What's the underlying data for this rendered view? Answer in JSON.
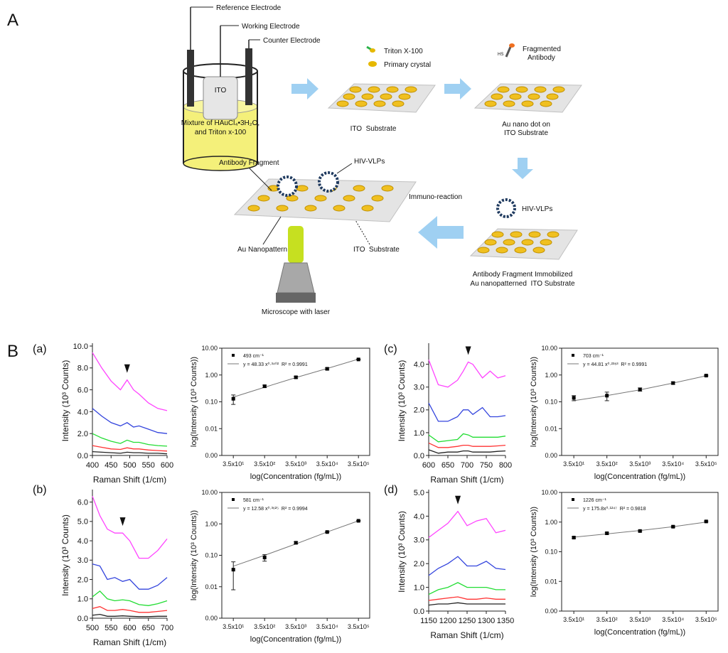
{
  "panel_labels": [
    "A",
    "B",
    "(a)",
    "(b)",
    "(c)",
    "(d)"
  ],
  "diagram": {
    "reference_electrode": "Reference Electrode",
    "working_electrode": "Working Electrode",
    "counter_electrode": "Counter Electrode",
    "ito": "ITO",
    "mixture": [
      "Mixture of HAuCl₄•3H₂O,",
      "and Triton x-100"
    ],
    "triton": "Triton X-100",
    "primary_crystal": "Primary crystal",
    "ito_substrate_1": "ITO  Substrate",
    "hs": "HS",
    "fragmented_antibody": [
      "Fragmented",
      "Antibody"
    ],
    "au_nano_dot": [
      "Au nano dot on",
      "ITO Substrate"
    ],
    "hiv_vlps_1": "HIV-VLPs",
    "immobilized": [
      "Antibody Fragment Immobilized",
      "Au nanopatterned  ITO Substrate"
    ],
    "immuno_reaction": "Immuno-reaction",
    "antibody_fragment": "Antibody Fragment",
    "hiv_vlps_2": "HIV-VLPs",
    "au_nanopattern": "Au Nanopattern",
    "ito_substrate_2": "ITO  Substrate",
    "microscope": "Microscope with laser"
  },
  "chart_data": [
    {
      "type": "line",
      "xlabel": "Raman Shift (1/cm)",
      "ylabel": "Intensity (10³ Counts)",
      "x": [
        400,
        425,
        450,
        475,
        493,
        510,
        525,
        550,
        575,
        600
      ],
      "peak_marker": 493,
      "xlim": [
        400,
        600
      ],
      "xticks": [
        400,
        450,
        500,
        550,
        600
      ],
      "ylim": [
        0,
        10
      ],
      "yticks": [
        {
          "value": 0,
          "label": "0.0"
        },
        {
          "value": 2,
          "label": "2.0"
        },
        {
          "value": 4,
          "label": "4.0"
        },
        {
          "value": 6,
          "label": "6.0"
        },
        {
          "value": 8,
          "label": "8.0"
        },
        {
          "value": 10,
          "label": "10.0"
        }
      ],
      "series": [
        {
          "color": "#ff44ff",
          "values": [
            9.4,
            8.0,
            6.8,
            6.0,
            6.9,
            6.0,
            5.6,
            4.8,
            4.3,
            4.1
          ]
        },
        {
          "color": "#3344dd",
          "values": [
            4.3,
            3.6,
            3.0,
            2.7,
            3.0,
            2.6,
            2.7,
            2.4,
            2.1,
            2.0
          ]
        },
        {
          "color": "#22dd33",
          "values": [
            2.0,
            1.6,
            1.3,
            1.1,
            1.4,
            1.2,
            1.2,
            1.0,
            0.9,
            0.85
          ]
        },
        {
          "color": "#ff3333",
          "values": [
            0.9,
            0.75,
            0.6,
            0.55,
            0.7,
            0.6,
            0.6,
            0.5,
            0.45,
            0.4
          ]
        },
        {
          "color": "#222222",
          "values": [
            0.35,
            0.3,
            0.25,
            0.2,
            0.3,
            0.25,
            0.25,
            0.2,
            0.2,
            0.15
          ]
        }
      ]
    },
    {
      "type": "scatter",
      "xlog": true,
      "ylog": true,
      "xlabel": "log(Concentration (fg/mL))",
      "ylabel": "log(Intensity (10³ Counts))",
      "x": [
        35,
        350,
        3500,
        35000,
        350000
      ],
      "xlim": [
        15,
        800000
      ],
      "xticks": [
        {
          "value": 35,
          "label": "3.5x10¹"
        },
        {
          "value": 350,
          "label": "3.5x10²"
        },
        {
          "value": 3500,
          "label": "3.5x10³"
        },
        {
          "value": 35000,
          "label": "3.5x10⁴"
        },
        {
          "value": 350000,
          "label": "3.5x10⁵"
        }
      ],
      "ylim": [
        0.001,
        10
      ],
      "yticks": [
        {
          "value": 0.001,
          "label": "0.00"
        },
        {
          "value": 0.01,
          "label": "0.01"
        },
        {
          "value": 0.1,
          "label": "0.10"
        },
        {
          "value": 1,
          "label": "1.00"
        },
        {
          "value": 10,
          "label": "10.00"
        }
      ],
      "series": [
        {
          "name": "493 cm⁻¹",
          "color": "#000000",
          "values": [
            0.13,
            0.38,
            0.82,
            1.7,
            3.8
          ],
          "errors": [
            0.05,
            0.04,
            0.08,
            0.15,
            0.1
          ]
        }
      ],
      "fit": {
        "name": "y = 48.33 x⁰·³⁴⁰²  R² = 0.9991",
        "color": "#777777",
        "values": [
          0.15,
          0.35,
          0.8,
          1.75,
          3.9
        ]
      }
    },
    {
      "type": "line",
      "xlabel": "Raman Shift (1/cm)",
      "ylabel": "Intensity (10³ Counts)",
      "x": [
        500,
        520,
        540,
        560,
        581,
        600,
        625,
        650,
        675,
        700
      ],
      "peak_marker": 581,
      "xlim": [
        500,
        700
      ],
      "xticks": [
        500,
        550,
        600,
        650,
        700
      ],
      "ylim": [
        0,
        6.5
      ],
      "yticks": [
        {
          "value": 0,
          "label": "0.0"
        },
        {
          "value": 1,
          "label": "1.0"
        },
        {
          "value": 2,
          "label": "2.0"
        },
        {
          "value": 3,
          "label": "3.0"
        },
        {
          "value": 4,
          "label": "4.0"
        },
        {
          "value": 5,
          "label": "5.0"
        },
        {
          "value": 6,
          "label": "6.0"
        }
      ],
      "series": [
        {
          "color": "#ff44ff",
          "values": [
            6.3,
            5.3,
            4.6,
            4.4,
            4.4,
            4.0,
            3.1,
            3.1,
            3.5,
            4.1
          ]
        },
        {
          "color": "#3344dd",
          "values": [
            2.8,
            2.7,
            2.0,
            2.1,
            1.9,
            2.0,
            1.5,
            1.5,
            1.7,
            2.1
          ]
        },
        {
          "color": "#22dd33",
          "values": [
            1.1,
            1.4,
            1.0,
            0.9,
            0.95,
            0.9,
            0.7,
            0.65,
            0.75,
            0.9
          ]
        },
        {
          "color": "#ff3333",
          "values": [
            0.5,
            0.6,
            0.4,
            0.4,
            0.45,
            0.4,
            0.3,
            0.3,
            0.35,
            0.4
          ]
        },
        {
          "color": "#222222",
          "values": [
            0.15,
            0.2,
            0.1,
            0.1,
            0.12,
            0.1,
            0.08,
            0.08,
            0.1,
            0.1
          ]
        }
      ]
    },
    {
      "type": "scatter",
      "xlog": true,
      "ylog": true,
      "xlabel": "log(Concentration (fg/mL))",
      "ylabel": "log(Intensity (10³ Counts))",
      "x": [
        35,
        350,
        3500,
        35000,
        350000
      ],
      "xlim": [
        15,
        800000
      ],
      "xticks": [
        {
          "value": 35,
          "label": "3.5x10¹"
        },
        {
          "value": 350,
          "label": "3.5x10²"
        },
        {
          "value": 3500,
          "label": "3.5x10³"
        },
        {
          "value": 35000,
          "label": "3.5x10⁴"
        },
        {
          "value": 350000,
          "label": "3.5x10⁵"
        }
      ],
      "ylim": [
        0.001,
        10
      ],
      "yticks": [
        {
          "value": 0.001,
          "label": "0.00"
        },
        {
          "value": 0.01,
          "label": "0.01"
        },
        {
          "value": 0.1,
          "label": "0.10"
        },
        {
          "value": 1,
          "label": "1.00"
        },
        {
          "value": 10,
          "label": "10.00"
        }
      ],
      "series": [
        {
          "name": "581 cm⁻¹",
          "color": "#000000",
          "values": [
            0.035,
            0.085,
            0.25,
            0.55,
            1.25
          ],
          "errors": [
            0.027,
            0.02,
            0.02,
            0.02,
            0.03
          ]
        }
      ],
      "fit": {
        "name": "y = 12.58 x⁰·³⁶²⁵  R² = 0.9994",
        "color": "#777777",
        "values": [
          0.045,
          0.1,
          0.23,
          0.55,
          1.25
        ]
      }
    },
    {
      "type": "line",
      "xlabel": "Raman Shift (1/cm)",
      "ylabel": "Intensity (10³ Counts)",
      "x": [
        600,
        625,
        650,
        675,
        690,
        703,
        715,
        740,
        760,
        780,
        800
      ],
      "peak_marker": 703,
      "xlim": [
        600,
        800
      ],
      "xticks": [
        600,
        650,
        700,
        750,
        800
      ],
      "ylim": [
        0,
        4.8
      ],
      "yticks": [
        {
          "value": 0,
          "label": "0.0"
        },
        {
          "value": 1,
          "label": "1.0"
        },
        {
          "value": 2,
          "label": "2.0"
        },
        {
          "value": 3,
          "label": "3.0"
        },
        {
          "value": 4,
          "label": "4.0"
        }
      ],
      "series": [
        {
          "color": "#ff44ff",
          "values": [
            4.2,
            3.1,
            3.0,
            3.3,
            3.7,
            4.1,
            4.0,
            3.4,
            3.7,
            3.4,
            3.5
          ]
        },
        {
          "color": "#3344dd",
          "values": [
            2.3,
            1.5,
            1.5,
            1.7,
            2.0,
            2.0,
            1.8,
            2.1,
            1.7,
            1.7,
            1.75
          ]
        },
        {
          "color": "#22dd33",
          "values": [
            0.9,
            0.6,
            0.65,
            0.7,
            0.95,
            0.9,
            0.8,
            0.8,
            0.8,
            0.8,
            0.85
          ]
        },
        {
          "color": "#ff3333",
          "values": [
            0.55,
            0.35,
            0.35,
            0.4,
            0.45,
            0.45,
            0.4,
            0.4,
            0.4,
            0.42,
            0.45
          ]
        },
        {
          "color": "#222222",
          "values": [
            0.25,
            0.1,
            0.15,
            0.15,
            0.2,
            0.2,
            0.15,
            0.15,
            0.15,
            0.18,
            0.2
          ]
        }
      ]
    },
    {
      "type": "scatter",
      "xlog": true,
      "ylog": true,
      "xlabel": "log(Concentration (fg/mL))",
      "ylabel": "log(Intensity (10³ Counts))",
      "x": [
        35,
        350,
        3500,
        35000,
        350000
      ],
      "xlim": [
        15,
        800000
      ],
      "xticks": [
        {
          "value": 35,
          "label": "3.5x10¹"
        },
        {
          "value": 350,
          "label": "3.5x10²"
        },
        {
          "value": 3500,
          "label": "3.5x10³"
        },
        {
          "value": 35000,
          "label": "3.5x10⁴"
        },
        {
          "value": 350000,
          "label": "3.5x10⁵"
        }
      ],
      "ylim": [
        0.001,
        10
      ],
      "yticks": [
        {
          "value": 0.001,
          "label": "0.00"
        },
        {
          "value": 0.01,
          "label": "0.01"
        },
        {
          "value": 0.1,
          "label": "0.10"
        },
        {
          "value": 1,
          "label": "1.00"
        },
        {
          "value": 10,
          "label": "10.00"
        }
      ],
      "series": [
        {
          "name": "703 cm⁻¹",
          "color": "#000000",
          "values": [
            0.14,
            0.17,
            0.29,
            0.5,
            0.95
          ],
          "errors": [
            0.03,
            0.06,
            0.04,
            0.05,
            0.04
          ]
        }
      ],
      "fit": {
        "name": "y = 44.81 x⁰·²³⁸³  R² = 0.9991",
        "color": "#777777",
        "values": [
          0.11,
          0.17,
          0.28,
          0.5,
          0.93
        ]
      }
    },
    {
      "type": "line",
      "xlabel": "Raman Shift (1/cm)",
      "ylabel": "Intensity (10³ Counts)",
      "x": [
        1150,
        1175,
        1200,
        1226,
        1250,
        1275,
        1300,
        1325,
        1350
      ],
      "peak_marker": 1226,
      "xlim": [
        1150,
        1350
      ],
      "xticks": [
        1150,
        1200,
        1250,
        1300,
        1350
      ],
      "ylim": [
        0,
        5
      ],
      "yticks": [
        {
          "value": 0,
          "label": "0.0"
        },
        {
          "value": 1,
          "label": "1.0"
        },
        {
          "value": 2,
          "label": "2.0"
        },
        {
          "value": 3,
          "label": "3.0"
        },
        {
          "value": 4,
          "label": "4.0"
        },
        {
          "value": 5,
          "label": "5.0"
        }
      ],
      "series": [
        {
          "color": "#ff44ff",
          "values": [
            3.1,
            3.4,
            3.7,
            4.2,
            3.6,
            3.8,
            3.9,
            3.3,
            3.4
          ]
        },
        {
          "color": "#3344dd",
          "values": [
            1.5,
            1.8,
            2.0,
            2.3,
            1.9,
            1.9,
            2.1,
            1.8,
            1.75
          ]
        },
        {
          "color": "#22dd33",
          "values": [
            0.7,
            0.9,
            1.0,
            1.2,
            1.0,
            1.0,
            1.0,
            0.9,
            0.9
          ]
        },
        {
          "color": "#ff3333",
          "values": [
            0.45,
            0.5,
            0.55,
            0.6,
            0.5,
            0.5,
            0.55,
            0.5,
            0.5
          ]
        },
        {
          "color": "#222222",
          "values": [
            0.25,
            0.3,
            0.3,
            0.35,
            0.3,
            0.3,
            0.3,
            0.3,
            0.3
          ]
        }
      ]
    },
    {
      "type": "scatter",
      "xlog": true,
      "ylog": true,
      "xlabel": "log(Concentration (fg/mL))",
      "ylabel": "log(Intensity (10³ Counts))",
      "x": [
        35,
        350,
        3500,
        35000,
        350000
      ],
      "xlim": [
        15,
        800000
      ],
      "xticks": [
        {
          "value": 35,
          "label": "3.5x10¹"
        },
        {
          "value": 350,
          "label": "3.5x10²"
        },
        {
          "value": 3500,
          "label": "3.5x10³"
        },
        {
          "value": 35000,
          "label": "3.5x10⁴"
        },
        {
          "value": 350000,
          "label": "3.5x10⁵"
        }
      ],
      "ylim": [
        0.001,
        10
      ],
      "yticks": [
        {
          "value": 0.001,
          "label": "0.00"
        },
        {
          "value": 0.01,
          "label": "0.01"
        },
        {
          "value": 0.1,
          "label": "0.10"
        },
        {
          "value": 1,
          "label": "1.00"
        },
        {
          "value": 10,
          "label": "10.00"
        }
      ],
      "series": [
        {
          "name": "1226 cm⁻¹",
          "color": "#000000",
          "values": [
            0.3,
            0.42,
            0.5,
            0.7,
            1.05
          ],
          "errors": [
            0.02,
            0.03,
            0.03,
            0.04,
            0.05
          ]
        }
      ],
      "fit": {
        "name": "y = 175.8x⁰·¹²⁴⁷  R² = 0.9818",
        "color": "#777777",
        "values": [
          0.31,
          0.4,
          0.52,
          0.7,
          1.0
        ]
      }
    }
  ]
}
